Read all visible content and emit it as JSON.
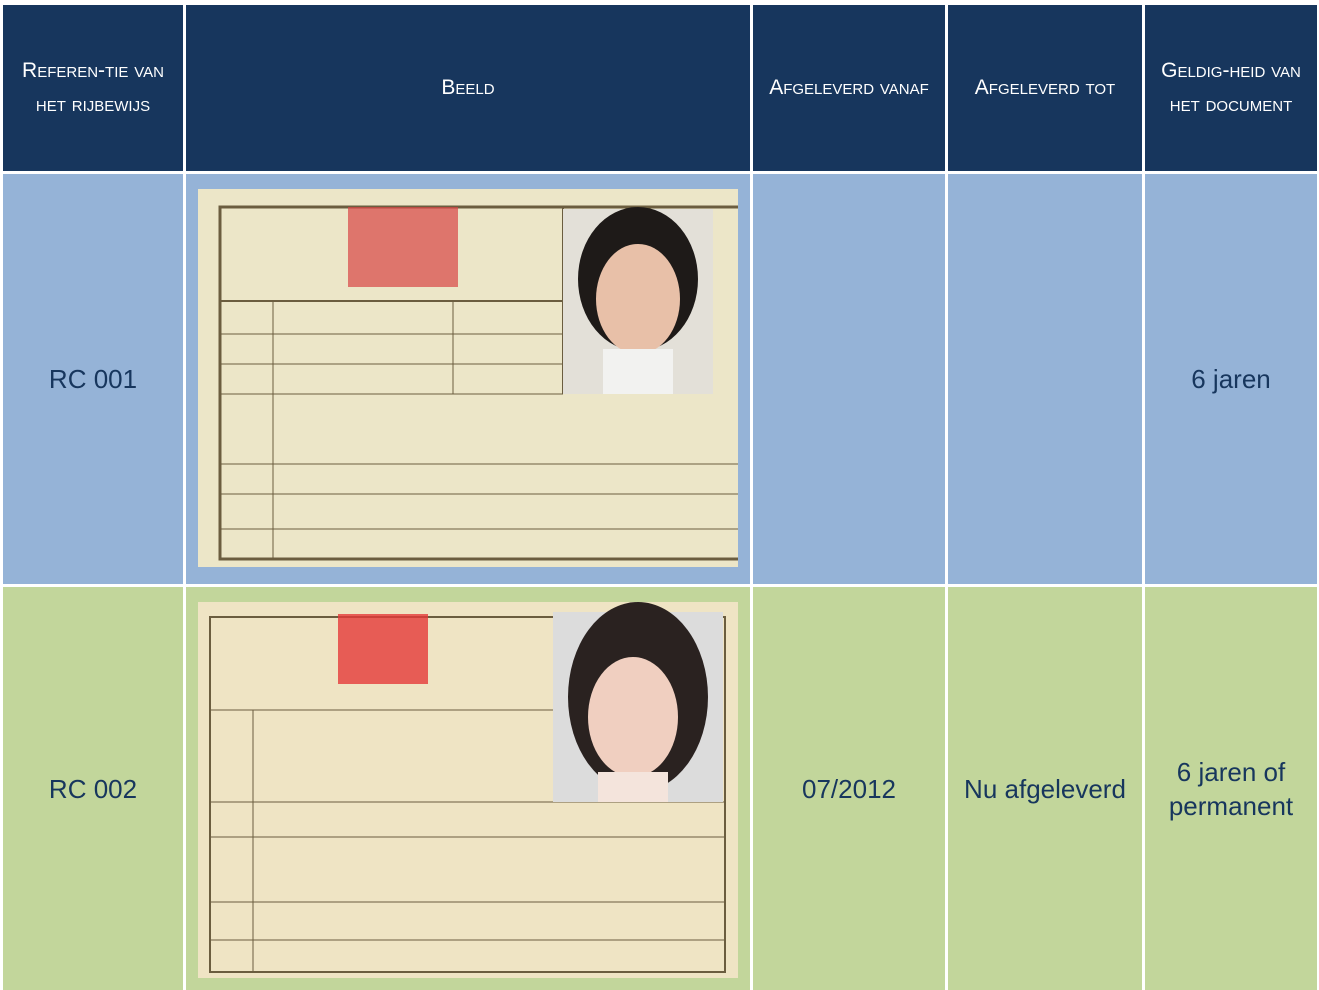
{
  "table": {
    "header": [
      "Referen-tie van het rijbewijs",
      "Beeld",
      "Afgeleverd vanaf",
      "Afgeleverd tot",
      "Geldig-heid van het document"
    ],
    "rows": [
      [
        "RC 001",
        "",
        "",
        "",
        "6 jaren"
      ],
      [
        "RC 002",
        "",
        "07/2012",
        "Nu afgeleverd",
        "6 jaren of permanent"
      ]
    ]
  }
}
